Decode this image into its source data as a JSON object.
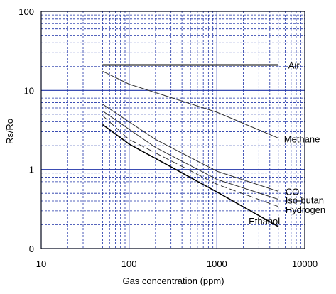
{
  "chart_data": {
    "type": "line",
    "xlabel": "Gas concentration (ppm)",
    "ylabel": "Rs/Ro",
    "x_scale": "log",
    "y_scale": "log",
    "xlim": [
      10,
      10000
    ],
    "ylim": [
      0.1,
      100
    ],
    "grid": true,
    "x_ticks": [
      {
        "value": 10,
        "label": "10"
      },
      {
        "value": 100,
        "label": "100"
      },
      {
        "value": 1000,
        "label": "1000"
      },
      {
        "value": 10000,
        "label": "10000"
      }
    ],
    "y_ticks": [
      {
        "value": 0.1,
        "label": "0"
      },
      {
        "value": 1,
        "label": "1"
      },
      {
        "value": 10,
        "label": "10"
      },
      {
        "value": 100,
        "label": "100"
      }
    ],
    "series": [
      {
        "name": "Air",
        "style": "solid",
        "width": 2,
        "color": "#000000",
        "points": [
          [
            50,
            21
          ],
          [
            5000,
            21
          ]
        ]
      },
      {
        "name": "Methane",
        "style": "solid",
        "width": 1,
        "color": "#333333",
        "points": [
          [
            50,
            17.5
          ],
          [
            100,
            12
          ],
          [
            1000,
            5.3
          ],
          [
            5000,
            2.5
          ]
        ]
      },
      {
        "name": "CO",
        "style": "solid",
        "width": 1,
        "color": "#333333",
        "points": [
          [
            50,
            6.7
          ],
          [
            200,
            2.4
          ],
          [
            1000,
            0.95
          ],
          [
            5000,
            0.53
          ]
        ]
      },
      {
        "name": "Iso-butan",
        "style": "solid",
        "width": 1,
        "color": "#333333",
        "points": [
          [
            50,
            5.5
          ],
          [
            200,
            1.9
          ],
          [
            1000,
            0.75
          ],
          [
            5000,
            0.42
          ]
        ]
      },
      {
        "name": "Hydrogen",
        "style": "dashed",
        "width": 1,
        "color": "#333333",
        "points": [
          [
            50,
            4.8
          ],
          [
            100,
            2.4
          ],
          [
            1000,
            0.65
          ],
          [
            5000,
            0.34
          ]
        ]
      },
      {
        "name": "Ethanol",
        "style": "solid",
        "width": 1.6,
        "color": "#000000",
        "points": [
          [
            50,
            3.7
          ],
          [
            100,
            2.1
          ],
          [
            1000,
            0.52
          ],
          [
            5000,
            0.19
          ]
        ]
      }
    ]
  }
}
